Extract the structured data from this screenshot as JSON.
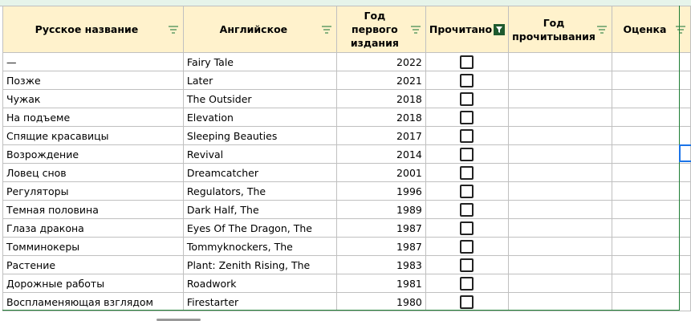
{
  "headers": [
    "Русское название",
    "Английское",
    "Год первого издания",
    "Прочитано",
    "Год прочитывания",
    "Оценка"
  ],
  "active_filter_column": "Прочитано",
  "filter_color": "#137333",
  "rows": [
    {
      "ru": "—",
      "en": "Fairy Tale",
      "year": "2022",
      "read": false
    },
    {
      "ru": "Позже",
      "en": "Later",
      "year": "2021",
      "read": false
    },
    {
      "ru": "Чужак",
      "en": "The Outsider",
      "year": "2018",
      "read": false
    },
    {
      "ru": "На подъеме",
      "en": "Elevation",
      "year": "2018",
      "read": false
    },
    {
      "ru": "Спящие красавицы",
      "en": "Sleeping Beauties",
      "year": "2017",
      "read": false
    },
    {
      "ru": "Возрождение",
      "en": "Revival",
      "year": "2014",
      "read": false
    },
    {
      "ru": "Ловец снов",
      "en": "Dreamcatcher",
      "year": "2001",
      "read": false
    },
    {
      "ru": "Регуляторы",
      "en": "Regulators, The",
      "year": "1996",
      "read": false
    },
    {
      "ru": "Темная половина",
      "en": "Dark Half, The",
      "year": "1989",
      "read": false
    },
    {
      "ru": "Глаза дракона",
      "en": "Eyes Of The Dragon, The",
      "year": "1987",
      "read": false
    },
    {
      "ru": "Томминокеры",
      "en": "Tommyknockers, The",
      "year": "1987",
      "read": false
    },
    {
      "ru": "Растение",
      "en": "Plant: Zenith Rising, The",
      "year": "1983",
      "read": false
    },
    {
      "ru": "Дорожные работы",
      "en": "Roadwork",
      "year": "1981",
      "read": false
    },
    {
      "ru": "Воспламеняющая взглядом",
      "en": "Firestarter",
      "year": "1980",
      "read": false
    }
  ]
}
